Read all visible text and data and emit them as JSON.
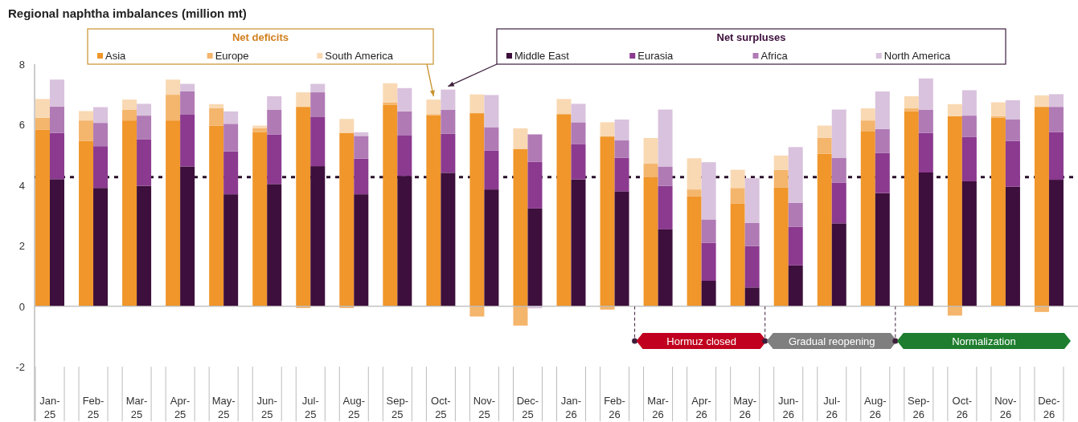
{
  "chart_data": [
    {
      "type": "bar",
      "stacked": true,
      "title": "Regional naphtha imbalances (million mt)",
      "legend_title": "Net deficits",
      "categories": [
        "Jan-25",
        "Feb-25",
        "Mar-25",
        "Apr-25",
        "May-25",
        "Jun-25",
        "Jul-25",
        "Aug-25",
        "Sep-25",
        "Oct-25",
        "Nov-25",
        "Dec-25",
        "Jan-26",
        "Feb-26",
        "Mar-26",
        "Apr-26",
        "May-26",
        "Jun-26",
        "Jul-26",
        "Aug-26",
        "Sep-26",
        "Oct-26",
        "Nov-26",
        "Dec-26"
      ],
      "series": [
        {
          "name": "Asia",
          "color": "#f0962a",
          "values": [
            5.84,
            5.46,
            6.14,
            6.14,
            5.97,
            5.76,
            6.59,
            5.73,
            6.65,
            6.31,
            6.38,
            5.2,
            6.35,
            5.61,
            4.26,
            3.63,
            3.39,
            3.92,
            5.04,
            5.79,
            6.45,
            6.28,
            6.23,
            6.59
          ]
        },
        {
          "name": "Europe",
          "color": "#f4b56c",
          "values": [
            0.39,
            0.68,
            0.36,
            0.85,
            0.58,
            0.12,
            -0.06,
            -0.06,
            0.09,
            0.04,
            -0.34,
            -0.64,
            0,
            -0.11,
            0.45,
            0.23,
            0.52,
            0.59,
            0.53,
            0.35,
            0.09,
            -0.31,
            0.05,
            -0.19
          ]
        },
        {
          "name": "South America",
          "color": "#f9d9b3",
          "values": [
            0.62,
            0.31,
            0.33,
            0.5,
            0.13,
            0.09,
            0.48,
            0.46,
            0.63,
            0.48,
            0.62,
            0.68,
            0.5,
            0.47,
            0.85,
            1.03,
            0.6,
            0.47,
            0.4,
            0.4,
            0.4,
            0.4,
            0.46,
            0.38
          ]
        }
      ],
      "ref_lines": [
        {
          "axis": "y",
          "value": 4.27,
          "color": "#2a0f2a",
          "line_style": "dotted"
        }
      ],
      "bands": [
        {
          "axis": "x",
          "from": "Mar-26",
          "to": "May-26",
          "label": "Hormuz closed",
          "color": "#c0001e"
        },
        {
          "axis": "x",
          "from": "Jun-26",
          "to": "Aug-26",
          "label": "Gradual reopening",
          "color": "#7f7f7f"
        },
        {
          "axis": "x",
          "from": "Sep-26",
          "to": "Dec-26",
          "label": "Normalization",
          "color": "#1e7d2e"
        }
      ],
      "ylim": [
        -3.8,
        8
      ],
      "yticks": [
        -2,
        0,
        2,
        4,
        6,
        8
      ],
      "tick_labels": "y",
      "legend": "top"
    },
    {
      "type": "bar",
      "stacked": true,
      "legend_title": "Net surpluses",
      "categories": [
        "Jan-25",
        "Feb-25",
        "Mar-25",
        "Apr-25",
        "May-25",
        "Jun-25",
        "Jul-25",
        "Aug-25",
        "Sep-25",
        "Oct-25",
        "Nov-25",
        "Dec-25",
        "Jan-26",
        "Feb-26",
        "Mar-26",
        "Apr-26",
        "May-26",
        "Jun-26",
        "Jul-26",
        "Aug-26",
        "Sep-26",
        "Oct-26",
        "Nov-26",
        "Dec-26"
      ],
      "series": [
        {
          "name": "Middle East",
          "color": "#3d0f3c",
          "values": [
            4.2,
            3.91,
            3.98,
            4.62,
            3.7,
            4.04,
            4.63,
            3.7,
            4.31,
            4.41,
            3.86,
            3.23,
            4.19,
            3.8,
            2.54,
            0.84,
            0.62,
            1.35,
            2.74,
            3.74,
            4.42,
            4.13,
            3.95,
            4.18
          ]
        },
        {
          "name": "Eurasia",
          "color": "#8b3a8f",
          "values": [
            1.53,
            1.38,
            1.53,
            1.71,
            1.42,
            1.64,
            1.62,
            1.18,
            1.33,
            1.29,
            1.29,
            1.54,
            1.16,
            1.11,
            1.44,
            1.26,
            1.37,
            1.28,
            1.34,
            1.33,
            1.31,
            1.46,
            1.51,
            1.58
          ]
        },
        {
          "name": "Africa",
          "color": "#b07ab5",
          "values": [
            0.87,
            0.77,
            0.79,
            0.77,
            0.91,
            0.82,
            0.82,
            0.75,
            0.8,
            0.8,
            0.77,
            0.91,
            0.73,
            0.57,
            0.64,
            0.77,
            0.77,
            0.79,
            0.83,
            0.79,
            0.77,
            0.71,
            0.71,
            0.83
          ]
        },
        {
          "name": "North America",
          "color": "#d9c2dd",
          "values": [
            0.89,
            0.52,
            0.39,
            0.25,
            0.41,
            0.44,
            0.28,
            0.12,
            0.77,
            0.66,
            1.06,
            -0.07,
            0.61,
            0.69,
            1.88,
            1.89,
            1.47,
            1.84,
            1.59,
            1.24,
            1.03,
            0.84,
            0.64,
            0.42
          ]
        }
      ],
      "ylim": [
        -3.8,
        8
      ],
      "yticks": [
        -2,
        0,
        2,
        4,
        6,
        8
      ],
      "tick_labels": "x",
      "legend": "top"
    }
  ]
}
